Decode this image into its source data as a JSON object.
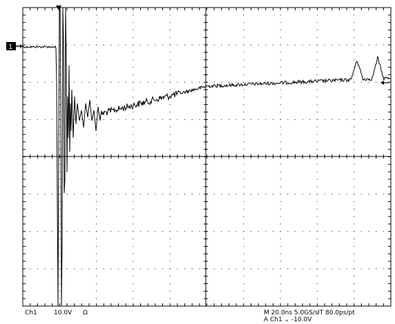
{
  "screen": {
    "channel_marker": "1",
    "status_bar": {
      "channel": "Ch1",
      "scale": "10.0V",
      "coupling": "Ω",
      "timebase": "M 20.0ns 5.0GS/s",
      "interpolation": "IT 80.0ps/pt",
      "trigger": "A  Ch1  ⌄  -10.0V"
    },
    "colors": {
      "trace": "#000000",
      "graticule": "#000000",
      "background": "#ffffff"
    },
    "icons": [
      "trigger-position-icon",
      "channel-ground-marker-icon",
      "trigger-level-arrow-icon"
    ]
  }
}
